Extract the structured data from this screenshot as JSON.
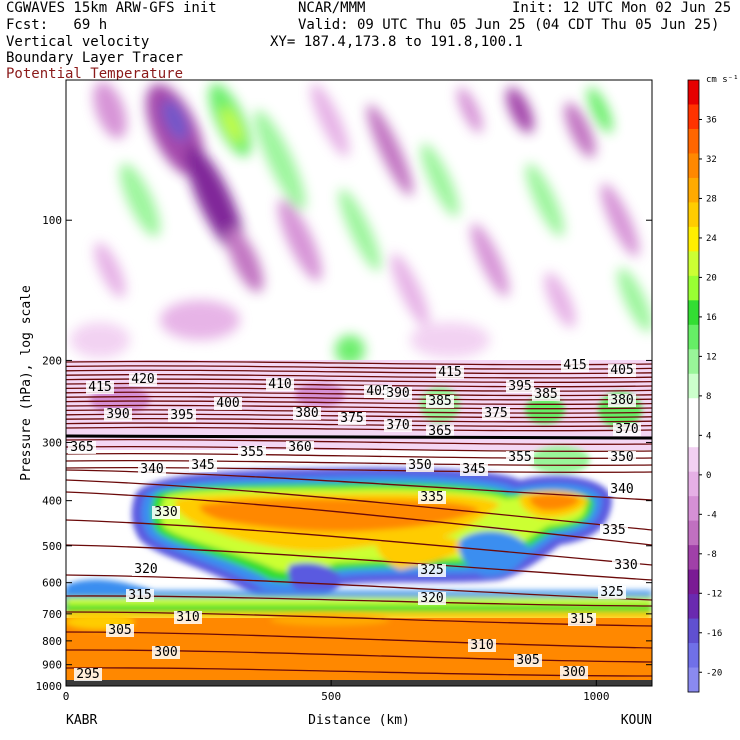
{
  "header": {
    "title_left": "CGWAVES 15km ARW-GFS init",
    "fcst": "Fcst:   69 h",
    "center": "NCAR/MMM",
    "init": "Init: 12 UTC Mon 02 Jun 25",
    "valid": "Valid: 09 UTC Thu 05 Jun 25 (04 CDT Thu 05 Jun 25)",
    "xy": "XY= 187.4,173.8 to 191.8,100.1",
    "field1": "Vertical velocity",
    "field2": "Boundary Layer Tracer",
    "field3": "Potential Temperature"
  },
  "colors": {
    "theta_contour": "#6b0a0a",
    "field3_label": "#8b1a1a"
  },
  "chart_data": {
    "type": "heatmap",
    "xlabel": "Distance (km)",
    "ylabel": "Pressure (hPa), log scale",
    "x_ticks": [
      "0",
      "500",
      "1000"
    ],
    "x_tick_values": [
      0,
      500,
      1000
    ],
    "xlim": [
      0,
      1105
    ],
    "y_ticks": [
      "100",
      "200",
      "300",
      "400",
      "500",
      "600",
      "700",
      "800",
      "900",
      "1000"
    ],
    "y_tick_values": [
      100,
      200,
      300,
      400,
      500,
      600,
      700,
      800,
      900,
      1000
    ],
    "ylim": [
      1000,
      50
    ],
    "y_scale": "log",
    "endpoints": {
      "left": "KABR",
      "right": "KOUN"
    },
    "colorbar": {
      "unit": "cm s⁻¹",
      "labels": [
        "36",
        "32",
        "28",
        "24",
        "20",
        "16",
        "12",
        "8",
        "4",
        "0",
        "-4",
        "-8",
        "-12",
        "-16",
        "-20"
      ],
      "levels": [
        36,
        32,
        28,
        24,
        20,
        16,
        12,
        8,
        4,
        0,
        -4,
        -8,
        -12,
        -16,
        -20
      ],
      "colors": [
        "#e60000",
        "#ff3300",
        "#ff6600",
        "#ff8800",
        "#ffaa00",
        "#ffcc00",
        "#ffee00",
        "#ccff33",
        "#99ff33",
        "#33dd33",
        "#66ee66",
        "#99f599",
        "#ccffcc",
        "#ffffff",
        "#ffffff",
        "#f2d0f2",
        "#e6b0e6",
        "#d590d5",
        "#c070c0",
        "#a040a8",
        "#7a1a94",
        "#6a2ab0",
        "#6050d0",
        "#7070e8",
        "#8a8af0"
      ]
    },
    "theta_contour_labels": [
      "415",
      "420",
      "410",
      "405",
      "415",
      "395",
      "415",
      "405",
      "390",
      "385",
      "395",
      "400",
      "390",
      "385",
      "380",
      "380",
      "375",
      "370",
      "365",
      "375",
      "370",
      "365",
      "355",
      "360",
      "350",
      "355",
      "350",
      "340",
      "345",
      "345",
      "340",
      "335",
      "330",
      "335",
      "320",
      "325",
      "330",
      "315",
      "320",
      "325",
      "310",
      "315",
      "305",
      "310",
      "305",
      "300",
      "300",
      "295"
    ]
  }
}
